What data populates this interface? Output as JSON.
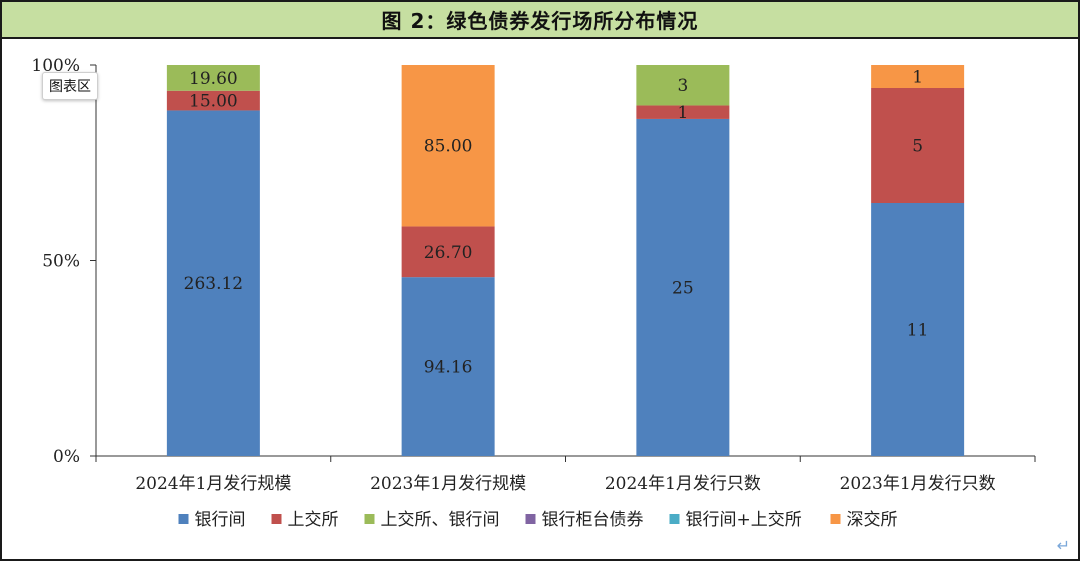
{
  "chart_data": {
    "type": "bar",
    "stacked": true,
    "normalized": true,
    "title": "图 2：绿色债券发行场所分布情况",
    "categories": [
      "2024年1月发行规模",
      "2023年1月发行规模",
      "2024年1月发行只数",
      "2023年1月发行只数"
    ],
    "series": [
      {
        "name": "银行间",
        "color": "#4f81bd",
        "values": [
          263.12,
          94.16,
          25,
          11
        ],
        "labels": [
          "263.12",
          "94.16",
          "25",
          "11"
        ]
      },
      {
        "name": "上交所",
        "color": "#c0504d",
        "values": [
          15.0,
          26.7,
          1,
          5
        ],
        "labels": [
          "15.00",
          "26.70",
          "1",
          "5"
        ]
      },
      {
        "name": "上交所、银行间",
        "color": "#9bbb59",
        "values": [
          19.6,
          0,
          3,
          0
        ],
        "labels": [
          "19.60",
          "",
          "3",
          ""
        ]
      },
      {
        "name": "银行柜台债券",
        "color": "#8064a2",
        "values": [
          0,
          0,
          0,
          0
        ],
        "labels": [
          "",
          "",
          "",
          ""
        ]
      },
      {
        "name": "银行间+上交所",
        "color": "#4bacc6",
        "values": [
          0,
          0,
          0,
          0
        ],
        "labels": [
          "",
          "",
          "",
          ""
        ]
      },
      {
        "name": "深交所",
        "color": "#f79646",
        "values": [
          0,
          85.0,
          0,
          1
        ],
        "labels": [
          "",
          "85.00",
          "",
          "1"
        ]
      }
    ],
    "yticks": [
      "0%",
      "50%",
      "100%"
    ],
    "ylim": [
      0,
      100
    ],
    "grid": false,
    "legend_position": "bottom"
  },
  "ui": {
    "chart_area_tooltip": "图表区"
  }
}
